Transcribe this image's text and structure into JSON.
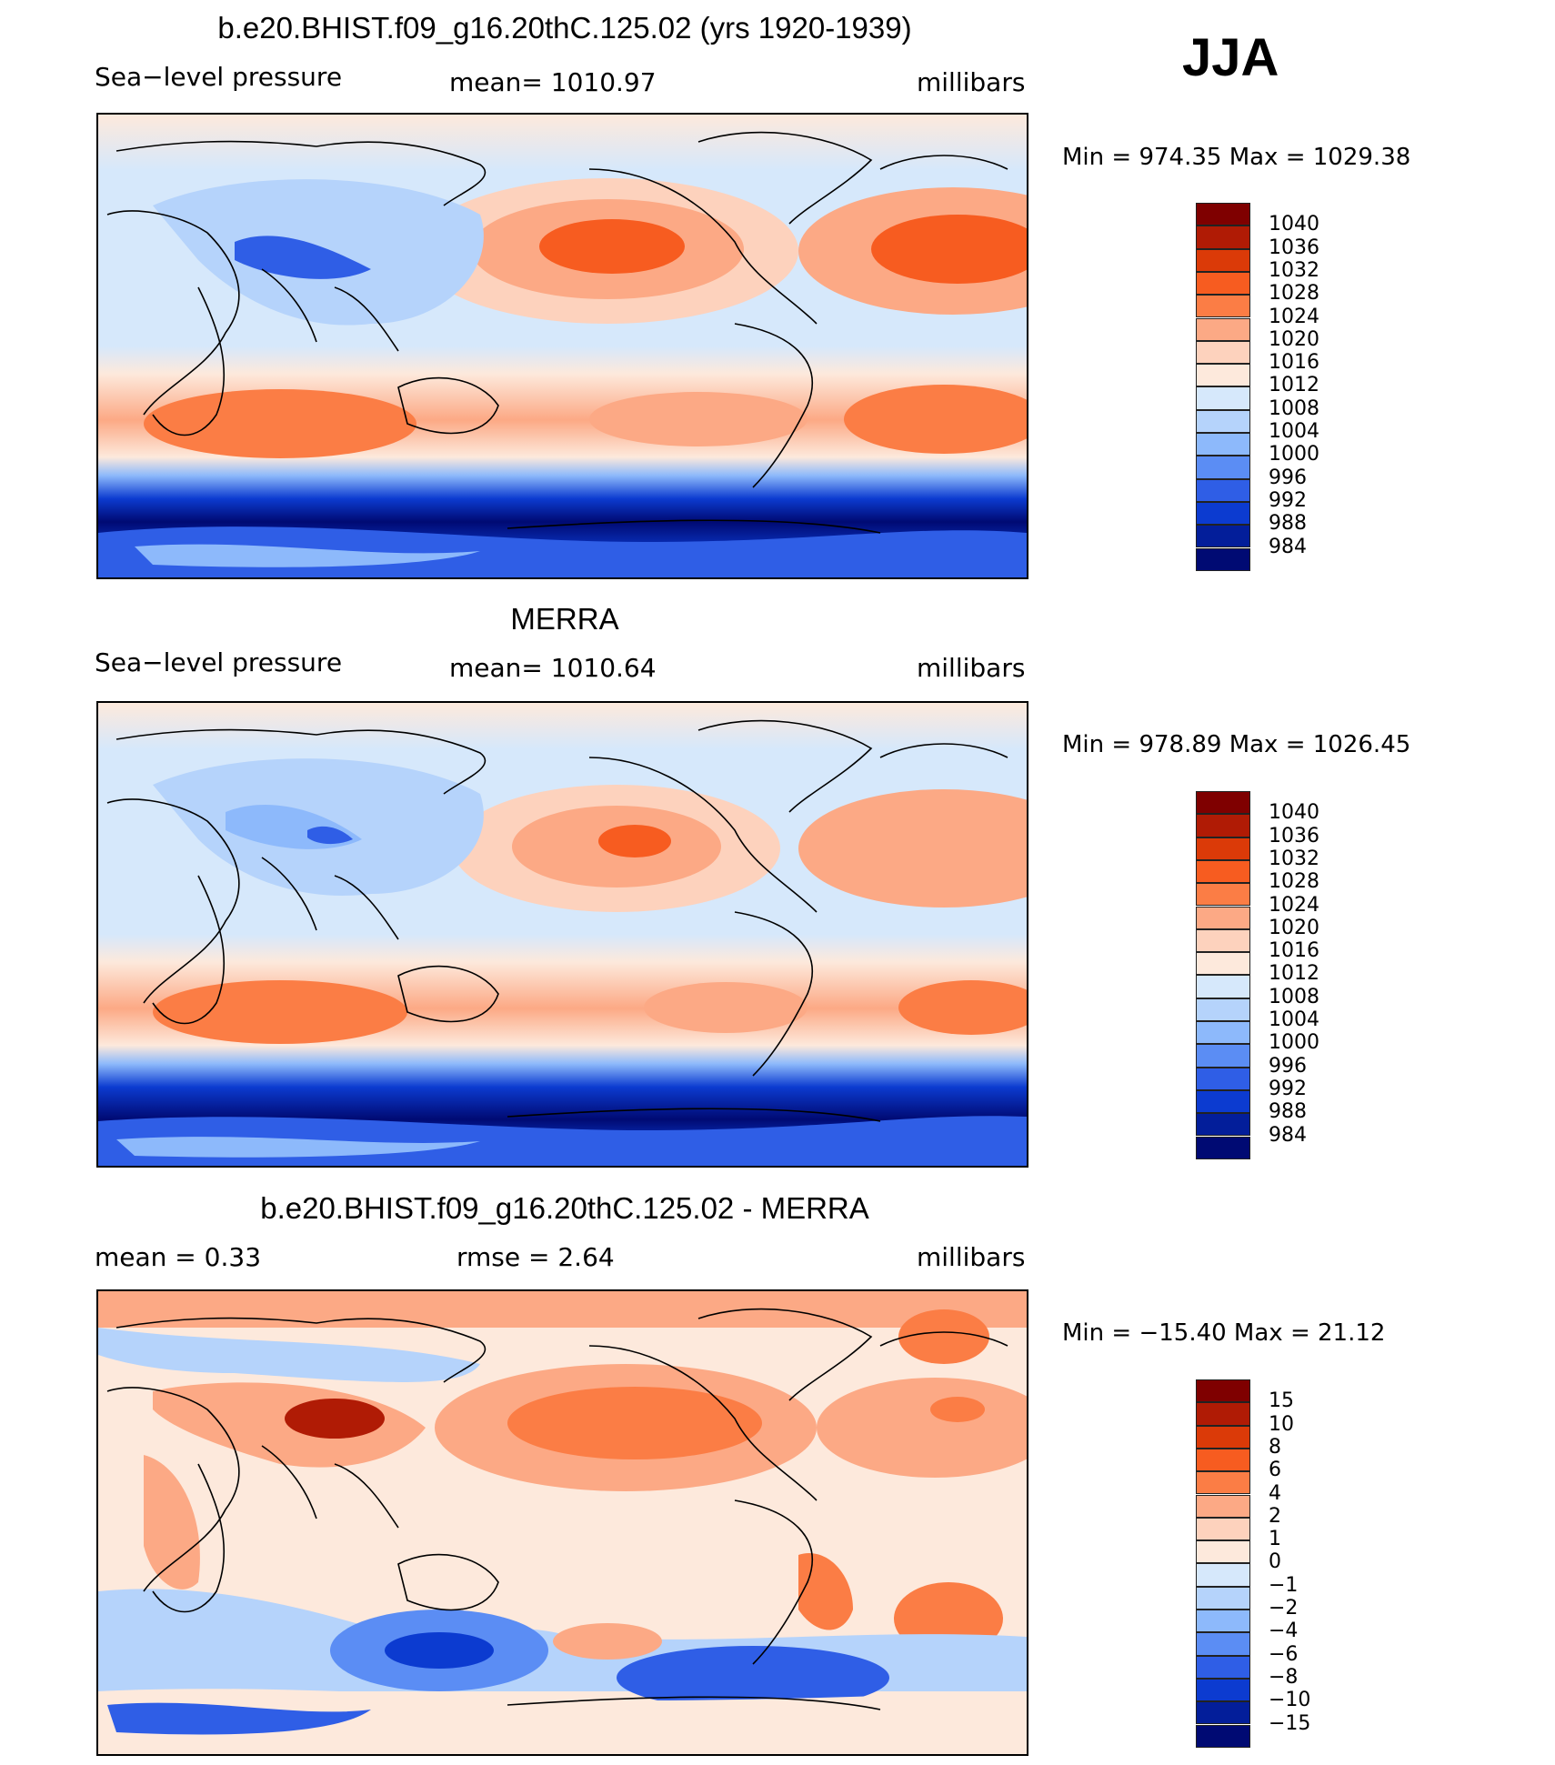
{
  "season_label": "JJA",
  "panels": [
    {
      "id": "model",
      "title": "b.e20.BHIST.f09_g16.20thC.125.02 (yrs 1920-1939)",
      "left_label": "Sea−level pressure",
      "center_label": "mean=  1010.97",
      "right_label": "millibars",
      "minmax": "Min  =  974.35  Max  =  1029.38",
      "levels": [
        "1040",
        "1036",
        "1032",
        "1028",
        "1024",
        "1020",
        "1016",
        "1012",
        "1008",
        "1004",
        "1000",
        "996",
        "992",
        "988",
        "984"
      ],
      "colors": [
        "#7f0000",
        "#b01b05",
        "#db3a08",
        "#f75c20",
        "#fb7d45",
        "#fca985",
        "#fdd2bd",
        "#fde9dc",
        "#d6e8fb",
        "#b5d3fb",
        "#8db9fb",
        "#5b8df4",
        "#2f5ee6",
        "#0c3bd0",
        "#031e9a",
        "#000a73"
      ]
    },
    {
      "id": "obs",
      "title": "MERRA",
      "left_label": "Sea−level pressure",
      "center_label": "mean=  1010.64",
      "right_label": "millibars",
      "minmax": "Min  =  978.89  Max  =  1026.45",
      "levels": [
        "1040",
        "1036",
        "1032",
        "1028",
        "1024",
        "1020",
        "1016",
        "1012",
        "1008",
        "1004",
        "1000",
        "996",
        "992",
        "988",
        "984"
      ],
      "colors": [
        "#7f0000",
        "#b01b05",
        "#db3a08",
        "#f75c20",
        "#fb7d45",
        "#fca985",
        "#fdd2bd",
        "#fde9dc",
        "#d6e8fb",
        "#b5d3fb",
        "#8db9fb",
        "#5b8df4",
        "#2f5ee6",
        "#0c3bd0",
        "#031e9a",
        "#000a73"
      ]
    },
    {
      "id": "diff",
      "title": "b.e20.BHIST.f09_g16.20thC.125.02 - MERRA",
      "left_label": "mean  =     0.33",
      "center_label": "rmse  =     2.64",
      "right_label": "millibars",
      "minmax": "Min  = −15.40  Max  =    21.12",
      "levels": [
        "15",
        "10",
        "8",
        "6",
        "4",
        "2",
        "1",
        "0",
        "−1",
        "−2",
        "−4",
        "−6",
        "−8",
        "−10",
        "−15"
      ],
      "colors": [
        "#7f0000",
        "#b01b05",
        "#db3a08",
        "#f75c20",
        "#fb7d45",
        "#fca985",
        "#fdd2bd",
        "#fde9dc",
        "#d6e8fb",
        "#b5d3fb",
        "#8db9fb",
        "#5b8df4",
        "#2f5ee6",
        "#0c3bd0",
        "#031e9a",
        "#000a73"
      ]
    }
  ]
}
